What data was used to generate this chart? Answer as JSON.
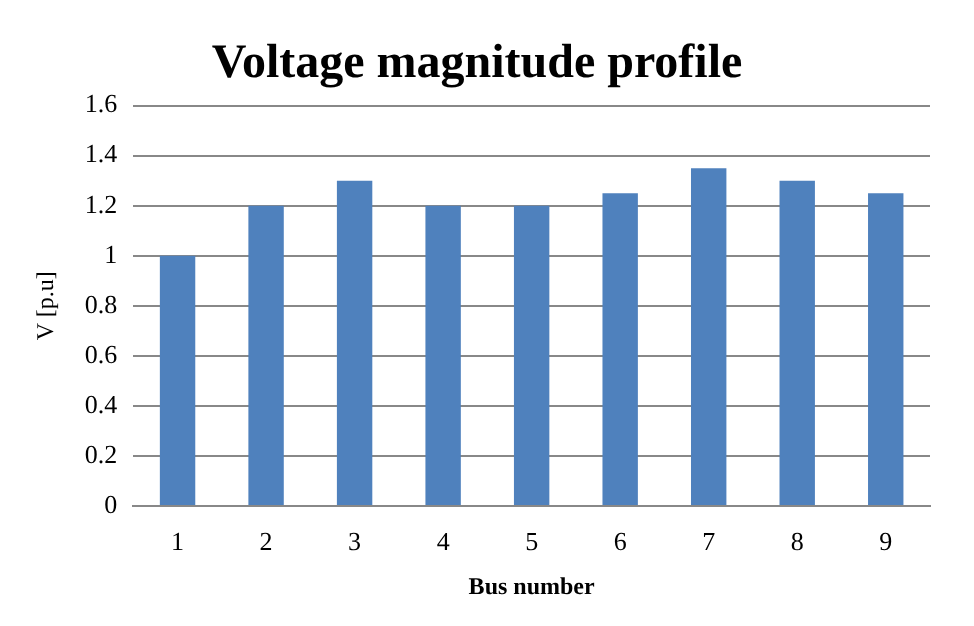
{
  "chart_data": {
    "type": "bar",
    "title": "Voltage magnitude profile",
    "xlabel": "Bus number",
    "ylabel": "V [p.u]",
    "categories": [
      "1",
      "2",
      "3",
      "4",
      "5",
      "6",
      "7",
      "8",
      "9"
    ],
    "values": [
      1,
      1.2,
      1.3,
      1.2,
      1.2,
      1.25,
      1.35,
      1.3,
      1.25
    ],
    "color": "#4f81bd",
    "ylim": [
      0,
      1.6
    ],
    "yticks": [
      0,
      0.2,
      0.4,
      0.6,
      0.8,
      1,
      1.2,
      1.4,
      1.6
    ],
    "grid": "y",
    "legend": false
  }
}
